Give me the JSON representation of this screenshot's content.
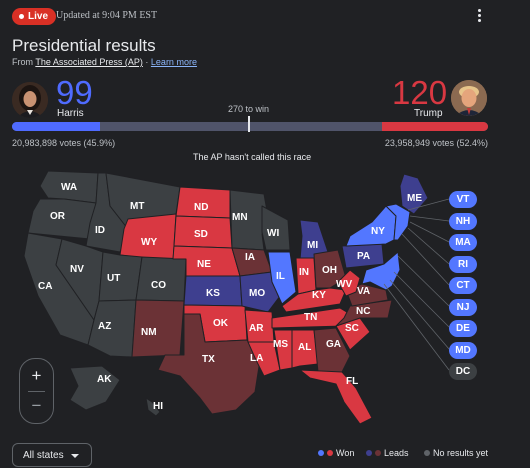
{
  "header": {
    "live_label": "Live",
    "updated": "Updated at 9:04 PM EST",
    "title": "Presidential results",
    "source_prefix": "From",
    "source_name": "The Associated Press (AP)",
    "separator": "·",
    "learn_more": "Learn more"
  },
  "tally": {
    "harris": {
      "name": "Harris",
      "ev": "99",
      "votes": "20,983,898 votes (45.9%)",
      "color": "#4f6bff",
      "bar_fraction": 0.184
    },
    "trump": {
      "name": "Trump",
      "ev": "120",
      "votes": "23,958,949 votes (52.4%)",
      "color": "#d93842",
      "bar_fraction": 0.223
    },
    "to_win": "270 to win",
    "status": "The AP hasn't called this race"
  },
  "colors": {
    "dem_won": "#5377ff",
    "dem_leads": "#3e3f8f",
    "rep_won": "#d93842",
    "rep_leads": "#6b3236",
    "no_results": "#3c4043"
  },
  "states": {
    "WA": "WA",
    "OR": "OR",
    "ID": "ID",
    "MT": "MT",
    "WY": "WY",
    "ND": "ND",
    "SD": "SD",
    "NE": "NE",
    "KS": "KS",
    "MN": "MN",
    "IA": "IA",
    "MO": "MO",
    "WI": "WI",
    "MI": "MI",
    "IL": "IL",
    "IN": "IN",
    "OH": "OH",
    "KY": "KY",
    "TN": "TN",
    "AR": "AR",
    "OK": "OK",
    "TX": "TX",
    "LA": "LA",
    "MS": "MS",
    "AL": "AL",
    "GA": "GA",
    "FL": "FL",
    "SC": "SC",
    "NC": "NC",
    "VA": "VA",
    "WV": "WV",
    "PA": "PA",
    "NY": "NY",
    "ME": "ME",
    "CA": "CA",
    "NV": "NV",
    "UT": "UT",
    "AZ": "AZ",
    "CO": "CO",
    "NM": "NM",
    "AK": "AK",
    "HI": "HI"
  },
  "small_states": [
    {
      "label": "VT",
      "result": "dem_won"
    },
    {
      "label": "NH",
      "result": "dem_won"
    },
    {
      "label": "MA",
      "result": "dem_won"
    },
    {
      "label": "RI",
      "result": "dem_won"
    },
    {
      "label": "CT",
      "result": "dem_won"
    },
    {
      "label": "NJ",
      "result": "dem_won"
    },
    {
      "label": "DE",
      "result": "dem_won"
    },
    {
      "label": "MD",
      "result": "dem_won"
    },
    {
      "label": "DC",
      "result": "no_results"
    }
  ],
  "controls": {
    "zoom_in": "+",
    "zoom_out": "−",
    "filter": "All states"
  },
  "legend": {
    "won": "Won",
    "leads": "Leads",
    "no_results": "No results yet"
  }
}
